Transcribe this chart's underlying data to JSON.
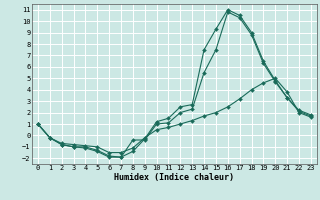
{
  "xlabel": "Humidex (Indice chaleur)",
  "bg_color": "#cce8e4",
  "grid_color": "#ffffff",
  "line_color": "#1a6b5a",
  "xlim": [
    -0.5,
    23.5
  ],
  "ylim": [
    -2.5,
    11.5
  ],
  "xticks": [
    0,
    1,
    2,
    3,
    4,
    5,
    6,
    7,
    8,
    9,
    10,
    11,
    12,
    13,
    14,
    15,
    16,
    17,
    18,
    19,
    20,
    21,
    22,
    23
  ],
  "yticks": [
    -2,
    -1,
    0,
    1,
    2,
    3,
    4,
    5,
    6,
    7,
    8,
    9,
    10,
    11
  ],
  "line1_x": [
    0,
    1,
    2,
    3,
    4,
    5,
    6,
    7,
    8,
    9,
    10,
    11,
    12,
    13,
    14,
    15,
    16,
    17,
    18,
    19,
    20,
    21,
    22,
    23
  ],
  "line1_y": [
    1.0,
    -0.2,
    -0.8,
    -1.0,
    -1.0,
    -1.3,
    -1.8,
    -1.9,
    -1.4,
    -0.3,
    1.2,
    1.5,
    2.5,
    2.7,
    7.5,
    9.3,
    11.0,
    10.5,
    9.0,
    6.5,
    4.8,
    3.3,
    2.2,
    1.8
  ],
  "line2_x": [
    0,
    1,
    2,
    3,
    4,
    5,
    6,
    7,
    8,
    9,
    10,
    11,
    12,
    13,
    14,
    15,
    16,
    17,
    18,
    19,
    20,
    21,
    22,
    23
  ],
  "line2_y": [
    1.0,
    -0.2,
    -0.8,
    -1.0,
    -1.1,
    -1.4,
    -1.9,
    -1.9,
    -0.4,
    -0.4,
    1.0,
    1.1,
    2.0,
    2.3,
    5.5,
    7.5,
    10.8,
    10.3,
    8.8,
    6.3,
    4.7,
    3.3,
    2.1,
    1.7
  ],
  "line3_x": [
    0,
    1,
    2,
    3,
    4,
    5,
    6,
    7,
    8,
    9,
    10,
    11,
    12,
    13,
    14,
    15,
    16,
    17,
    18,
    19,
    20,
    21,
    22,
    23
  ],
  "line3_y": [
    1.0,
    -0.2,
    -0.7,
    -0.8,
    -0.9,
    -1.0,
    -1.5,
    -1.5,
    -1.1,
    -0.2,
    0.5,
    0.7,
    1.0,
    1.3,
    1.7,
    2.0,
    2.5,
    3.2,
    4.0,
    4.6,
    5.0,
    3.8,
    2.0,
    1.6
  ]
}
